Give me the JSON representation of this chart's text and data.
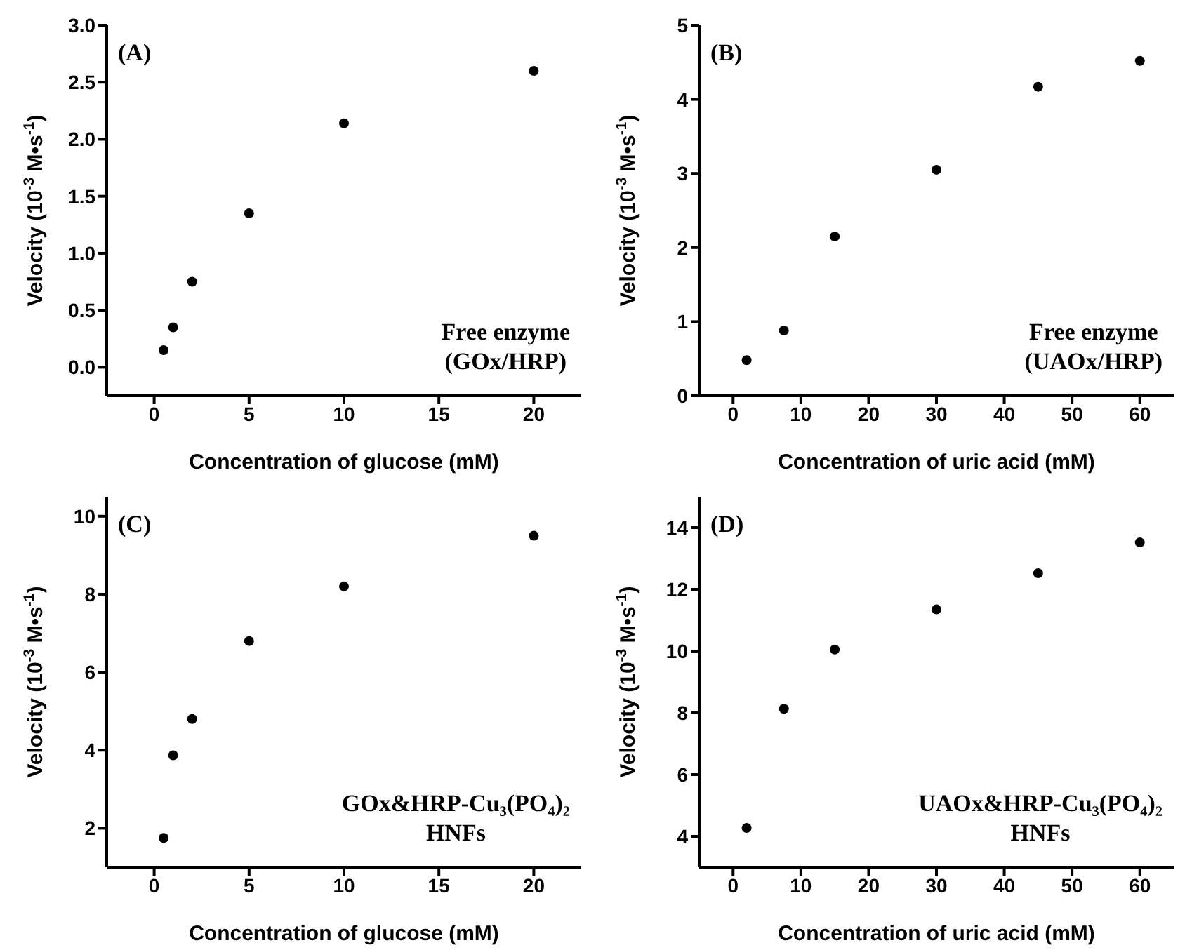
{
  "chart_data": [
    {
      "type": "scatter",
      "xlabel": "Concentration of glucose (mM)",
      "ylabel": "Velocity (10$^{-3}$ M•s$^{-1}$)",
      "annotations": [
        "(A)",
        "Free enzyme\n(GOx/HRP)"
      ],
      "x": [
        0.5,
        1,
        2,
        5,
        10,
        20
      ],
      "values": [
        0.15,
        0.35,
        0.75,
        1.35,
        2.14,
        2.6
      ],
      "color": "#000000",
      "marker": "circle",
      "xlim": [
        -2.5,
        22.5
      ],
      "xticks": [
        0,
        5,
        10,
        15,
        20
      ],
      "ylim": [
        -0.25,
        3.0
      ],
      "yticks": [
        {
          "value": 0,
          "label": "0.0"
        },
        0.5,
        {
          "value": 1,
          "label": "1.0"
        },
        1.5,
        {
          "value": 2,
          "label": "2.0"
        },
        2.5,
        {
          "value": 3,
          "label": "3.0"
        }
      ]
    },
    {
      "type": "scatter",
      "xlabel": "Concentration of uric acid (mM)",
      "ylabel": "Velocity (10$^{-3}$ M•s$^{-1}$)",
      "annotations": [
        "(B)",
        "Free enzyme\n(UAOx/HRP)"
      ],
      "x": [
        2,
        7.5,
        15,
        30,
        45,
        60
      ],
      "values": [
        0.48,
        0.88,
        2.15,
        3.05,
        4.17,
        4.52
      ],
      "color": "#000000",
      "marker": "circle",
      "xlim": [
        -5,
        65
      ],
      "xticks": [
        0,
        10,
        20,
        30,
        40,
        50,
        60
      ],
      "ylim": [
        0,
        5
      ],
      "yticks": [
        0,
        1,
        2,
        3,
        4,
        5
      ]
    },
    {
      "type": "scatter",
      "xlabel": "Concentration of glucose (mM)",
      "ylabel": "Velocity (10$^{-3}$ M•s$^{-1}$)",
      "annotations": [
        "(C)",
        "GOx&HRP-Cu₃(PO₄)₂\nHNFs"
      ],
      "x": [
        0.5,
        1,
        2,
        5,
        10,
        20
      ],
      "values": [
        1.75,
        3.87,
        4.8,
        6.8,
        8.2,
        9.5
      ],
      "color": "#000000",
      "marker": "circle",
      "xlim": [
        -2.5,
        22.5
      ],
      "xticks": [
        0,
        5,
        10,
        15,
        20
      ],
      "ylim": [
        1,
        10.5
      ],
      "yticks": [
        2,
        4,
        6,
        8,
        10
      ]
    },
    {
      "type": "scatter",
      "xlabel": "Concentration of uric acid (mM)",
      "ylabel": "Velocity (10$^{-3}$ M•s$^{-1}$)",
      "annotations": [
        "(D)",
        "UAOx&HRP-Cu₃(PO₄)₂\nHNFs"
      ],
      "x": [
        2,
        7.5,
        15,
        30,
        45,
        60
      ],
      "values": [
        4.27,
        8.13,
        10.05,
        11.35,
        12.52,
        13.52
      ],
      "color": "#000000",
      "marker": "circle",
      "xlim": [
        -5,
        65
      ],
      "xticks": [
        0,
        10,
        20,
        30,
        40,
        50,
        60
      ],
      "ylim": [
        3,
        15
      ],
      "yticks": [
        4,
        6,
        8,
        10,
        12,
        14
      ]
    }
  ]
}
